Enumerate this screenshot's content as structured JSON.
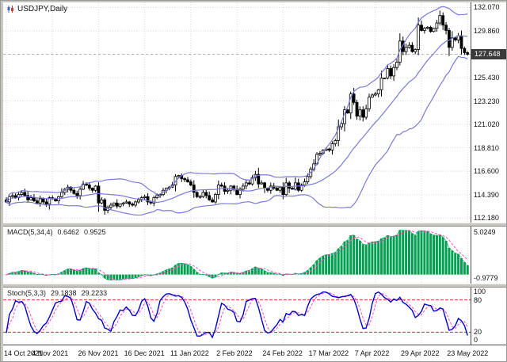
{
  "header": {
    "title": "USDJPY,Daily"
  },
  "price_axis": {
    "labels": [
      "132.070",
      "129.860",
      "127.640",
      "125.430",
      "123.230",
      "121.020",
      "118.810",
      "116.600",
      "114.390",
      "112.180"
    ],
    "badge": "127.648"
  },
  "macd_panel": {
    "name": "MACD(5,34,4)",
    "value1": "0.6462",
    "value2": "0.9525",
    "axis_top": "5.0249",
    "axis_bottom": "-0.9779"
  },
  "stoch_panel": {
    "name": "Stoch(5,3,3)",
    "value1": "29.1838",
    "value2": "29.2233",
    "axis": [
      "100",
      "80",
      "20",
      "0"
    ]
  },
  "time_axis": {
    "labels": [
      "14 Oct 2021",
      "4 Nov 2021",
      "26 Nov 2021",
      "16 Dec 2021",
      "11 Jan 2022",
      "2 Feb 2022",
      "24 Feb 2022",
      "17 Mar 2022",
      "7 Apr 2022",
      "29 Apr 2022",
      "23 May 2022"
    ]
  },
  "colors": {
    "grid": "#d8d8d8",
    "bollinger": "#7a7ad8",
    "candle_outline": "#000000",
    "bull_fill": "#ffffff",
    "bear_fill": "#000000",
    "macd_hist": "#00a050",
    "signal": "#ff45d2",
    "stoch_main": "#0000cc",
    "level": "#e03030",
    "badge_bg": "#3a3a3a",
    "current_price_line": "#b5b5b5"
  },
  "chart_data": {
    "type": "candlestick",
    "symbol": "USDJPY",
    "timeframe": "Daily",
    "title": "USDJPY, Daily with Bollinger Bands, MACD(5,34,4), Stochastic(5,3,3)",
    "current_price": 127.648,
    "y_axis_ticks": [
      132.07,
      129.86,
      127.64,
      125.43,
      123.23,
      121.02,
      118.81,
      116.6,
      114.39,
      112.18
    ],
    "x_tick_labels": [
      "14 Oct 2021",
      "4 Nov 2021",
      "26 Nov 2021",
      "16 Dec 2021",
      "11 Jan 2022",
      "2 Feb 2022",
      "24 Feb 2022",
      "17 Mar 2022",
      "7 Apr 2022",
      "29 Apr 2022",
      "23 May 2022"
    ],
    "candles_per_tick": 15,
    "first_open": 113.9,
    "closes": [
      113.7,
      114.2,
      114.3,
      114.1,
      114.4,
      114.6,
      114.3,
      113.9,
      114.1,
      113.8,
      113.6,
      114.0,
      113.7,
      113.5,
      114.1,
      114.0,
      113.8,
      114.2,
      114.6,
      114.9,
      115.1,
      114.8,
      114.5,
      114.3,
      114.9,
      115.4,
      115.3,
      115.0,
      114.8,
      115.2,
      113.6,
      113.9,
      112.9,
      113.2,
      113.4,
      113.6,
      113.3,
      113.5,
      113.6,
      113.7,
      113.5,
      113.4,
      113.7,
      113.9,
      114.1,
      114.2,
      113.7,
      113.6,
      114.1,
      114.3,
      114.4,
      114.8,
      115.0,
      115.1,
      115.3,
      116.1,
      116.2,
      115.9,
      115.8,
      115.6,
      115.3,
      114.6,
      114.2,
      114.2,
      114.6,
      114.3,
      113.9,
      113.7,
      114.4,
      115.3,
      115.2,
      114.7,
      114.8,
      115.2,
      114.9,
      114.4,
      114.9,
      115.2,
      115.5,
      115.4,
      116.0,
      116.3,
      115.4,
      115.5,
      115.0,
      114.8,
      115.2,
      115.0,
      114.8,
      115.1,
      114.4,
      115.5,
      115.0,
      114.9,
      115.5,
      114.8,
      115.3,
      115.6,
      116.1,
      116.8,
      117.3,
      118.2,
      118.3,
      118.6,
      118.7,
      118.6,
      119.2,
      119.5,
      120.8,
      121.1,
      122.4,
      122.1,
      123.9,
      123.1,
      121.8,
      122.4,
      121.7,
      122.5,
      123.6,
      123.8,
      123.9,
      124.3,
      125.4,
      125.4,
      126.3,
      125.6,
      126.4,
      126.9,
      128.9,
      127.9,
      128.3,
      128.5,
      127.9,
      128.1,
      130.4,
      129.9,
      130.1,
      130.2,
      129.8,
      130.1,
      130.6,
      131.3,
      130.4,
      129.9,
      128.3,
      129.2,
      129.0,
      129.4,
      128.2,
      127.8,
      127.65
    ],
    "overlays": [
      {
        "name": "Bollinger Bands",
        "period": 20,
        "deviation": 2
      }
    ],
    "subcharts": [
      {
        "name": "MACD",
        "params": [
          5,
          34,
          4
        ],
        "display": "histogram+signal",
        "last_values": [
          0.6462,
          0.9525
        ],
        "scale": [
          -0.9779,
          5.0249
        ]
      },
      {
        "name": "Stochastic",
        "params": [
          5,
          3,
          3
        ],
        "display": "main+signal",
        "last_values": [
          29.1838,
          29.2233
        ],
        "levels": [
          20,
          80
        ],
        "scale": [
          0,
          100
        ]
      }
    ]
  }
}
